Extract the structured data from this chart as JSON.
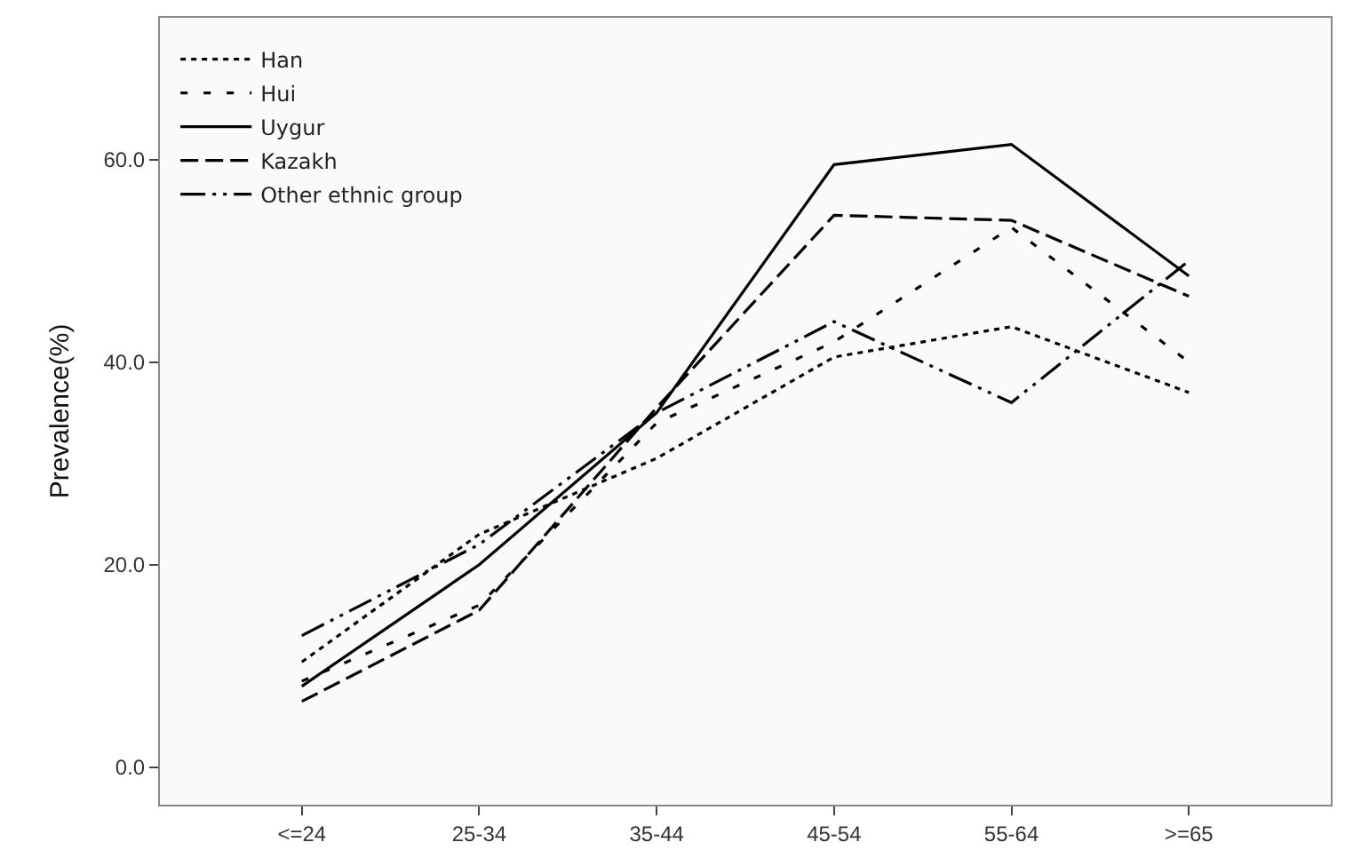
{
  "chart_data": {
    "type": "line",
    "ylabel": "Prevalence(%)",
    "categories": [
      "<=24",
      "25-34",
      "35-44",
      "45-54",
      "55-64",
      ">=65"
    ],
    "series": [
      {
        "name": "Han",
        "color": "#000000",
        "line_style": "dotted",
        "values": [
          10.4,
          23,
          30.5,
          40.5,
          43.5,
          37
        ]
      },
      {
        "name": "Hui",
        "color": "#000000",
        "line_style": "dashed",
        "values": [
          8.5,
          16,
          34,
          42,
          53.3,
          40
        ]
      },
      {
        "name": "Uygur",
        "color": "#000000",
        "line_style": "solid",
        "values": [
          8,
          20,
          35,
          59.5,
          61.5,
          48.5
        ]
      },
      {
        "name": "Kazakh",
        "color": "#000000",
        "line_style": "longdash",
        "values": [
          6.5,
          15.5,
          35.5,
          54.5,
          54,
          46.5
        ]
      },
      {
        "name": "Other ethnic group",
        "color": "#000000",
        "line_style": "dashdot",
        "values": [
          13,
          22,
          35,
          44,
          36,
          50
        ]
      }
    ],
    "ylim": [
      -3.7,
      74
    ],
    "yticks": [
      {
        "value": 0,
        "label": "0.0"
      },
      {
        "value": 20,
        "label": "20.0"
      },
      {
        "value": 40,
        "label": "40.0"
      },
      {
        "value": 60,
        "label": "60.0"
      }
    ],
    "legend": "top left",
    "marker": "none"
  }
}
